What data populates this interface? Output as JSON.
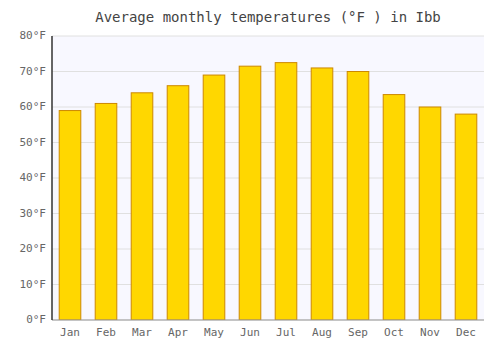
{
  "chart_data": {
    "type": "bar",
    "title": "Average monthly temperatures (°F ) in Ibb",
    "categories": [
      "Jan",
      "Feb",
      "Mar",
      "Apr",
      "May",
      "Jun",
      "Jul",
      "Aug",
      "Sep",
      "Oct",
      "Nov",
      "Dec"
    ],
    "values": [
      59,
      61,
      64,
      66,
      69,
      71.5,
      72.5,
      71,
      70,
      63.5,
      60,
      58
    ],
    "color": "#FFD700",
    "ylim": [
      0,
      80
    ],
    "yticks": [
      {
        "value": 0,
        "label": "0°F"
      },
      {
        "value": 10,
        "label": "10°F"
      },
      {
        "value": 20,
        "label": "20°F"
      },
      {
        "value": 30,
        "label": "30°F"
      },
      {
        "value": 40,
        "label": "40°F"
      },
      {
        "value": 50,
        "label": "50°F"
      },
      {
        "value": 60,
        "label": "60°F"
      },
      {
        "value": 70,
        "label": "70°F"
      },
      {
        "value": 80,
        "label": "80°F"
      }
    ],
    "grid": true
  }
}
